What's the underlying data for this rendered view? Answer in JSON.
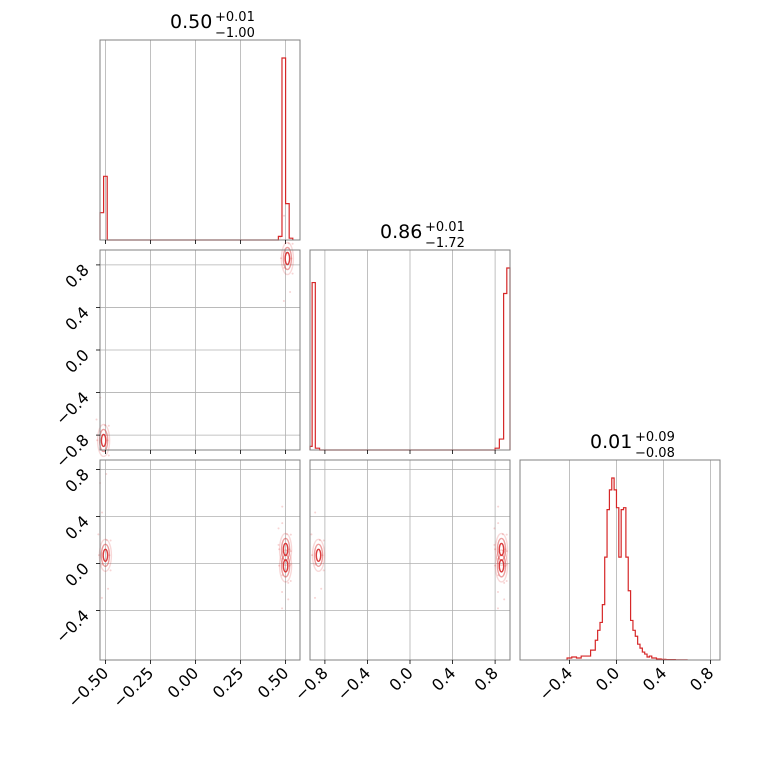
{
  "chart_data": {
    "type": "corner",
    "color": "#d62728",
    "params": [
      {
        "range": [
          -0.53,
          0.58
        ],
        "ticks": [
          -0.5,
          -0.25,
          0.0,
          0.25,
          0.5
        ],
        "tick_labels": [
          "−0.50",
          "−0.25",
          "0.00",
          "0.25",
          "0.50"
        ]
      },
      {
        "range": [
          -0.94,
          0.94
        ],
        "ticks": [
          -0.8,
          -0.4,
          0.0,
          0.4,
          0.8
        ],
        "tick_labels": [
          "−0.8",
          "−0.4",
          "0.0",
          "0.4",
          "0.8"
        ]
      },
      {
        "range": [
          -0.82,
          0.88
        ],
        "ticks": [
          -0.4,
          0.0,
          0.4,
          0.8
        ],
        "tick_labels": [
          "−0.4",
          "0.0",
          "0.4",
          "0.8"
        ]
      }
    ],
    "titles": [
      {
        "value": "0.50",
        "plus": "+0.01",
        "minus": "−1.00"
      },
      {
        "value": "0.86",
        "plus": "+0.01",
        "minus": "−1.72"
      },
      {
        "value": "0.01",
        "plus": "+0.09",
        "minus": "−0.08"
      }
    ],
    "hist1d": [
      {
        "edges": [
          -0.53,
          -0.51,
          -0.49,
          0.46,
          0.48,
          0.5,
          0.52,
          0.54
        ],
        "counts": [
          0.15,
          0.35,
          0.0,
          0.02,
          1.0,
          0.2,
          0.01
        ]
      },
      {
        "edges": [
          -0.94,
          -0.92,
          -0.89,
          -0.85,
          0.8,
          0.84,
          0.88,
          0.91,
          0.94
        ],
        "counts": [
          0.02,
          0.92,
          0.01,
          0.0,
          0.01,
          0.06,
          0.86,
          1.0
        ]
      },
      {
        "edges": [
          -0.42,
          -0.38,
          -0.34,
          -0.3,
          -0.26,
          -0.22,
          -0.18,
          -0.16,
          -0.14,
          -0.12,
          -0.1,
          -0.08,
          -0.06,
          -0.04,
          -0.02,
          0.0,
          0.02,
          0.04,
          0.06,
          0.08,
          0.1,
          0.12,
          0.14,
          0.16,
          0.18,
          0.2,
          0.22,
          0.24,
          0.26,
          0.28,
          0.3,
          0.32,
          0.34,
          0.38,
          0.42,
          0.5,
          0.6
        ],
        "counts": [
          0.01,
          0.015,
          0.01,
          0.02,
          0.02,
          0.05,
          0.1,
          0.15,
          0.19,
          0.28,
          0.52,
          0.76,
          0.86,
          0.92,
          0.86,
          0.77,
          0.52,
          0.76,
          0.77,
          0.52,
          0.35,
          0.2,
          0.15,
          0.12,
          0.08,
          0.06,
          0.04,
          0.03,
          0.015,
          0.02,
          0.01,
          0.01,
          0.005,
          0.003,
          0.002,
          0.001
        ]
      }
    ],
    "clusters": [
      {
        "row": 1,
        "col": 0,
        "points": [
          [
            -0.51,
            -0.85
          ],
          [
            0.51,
            0.86
          ]
        ]
      },
      {
        "row": 2,
        "col": 0,
        "points": [
          [
            -0.5,
            0.07
          ],
          [
            0.5,
            -0.02
          ],
          [
            0.5,
            0.12
          ]
        ]
      },
      {
        "row": 2,
        "col": 1,
        "points": [
          [
            -0.86,
            0.07
          ],
          [
            0.86,
            -0.02
          ],
          [
            0.86,
            0.12
          ]
        ]
      }
    ]
  }
}
